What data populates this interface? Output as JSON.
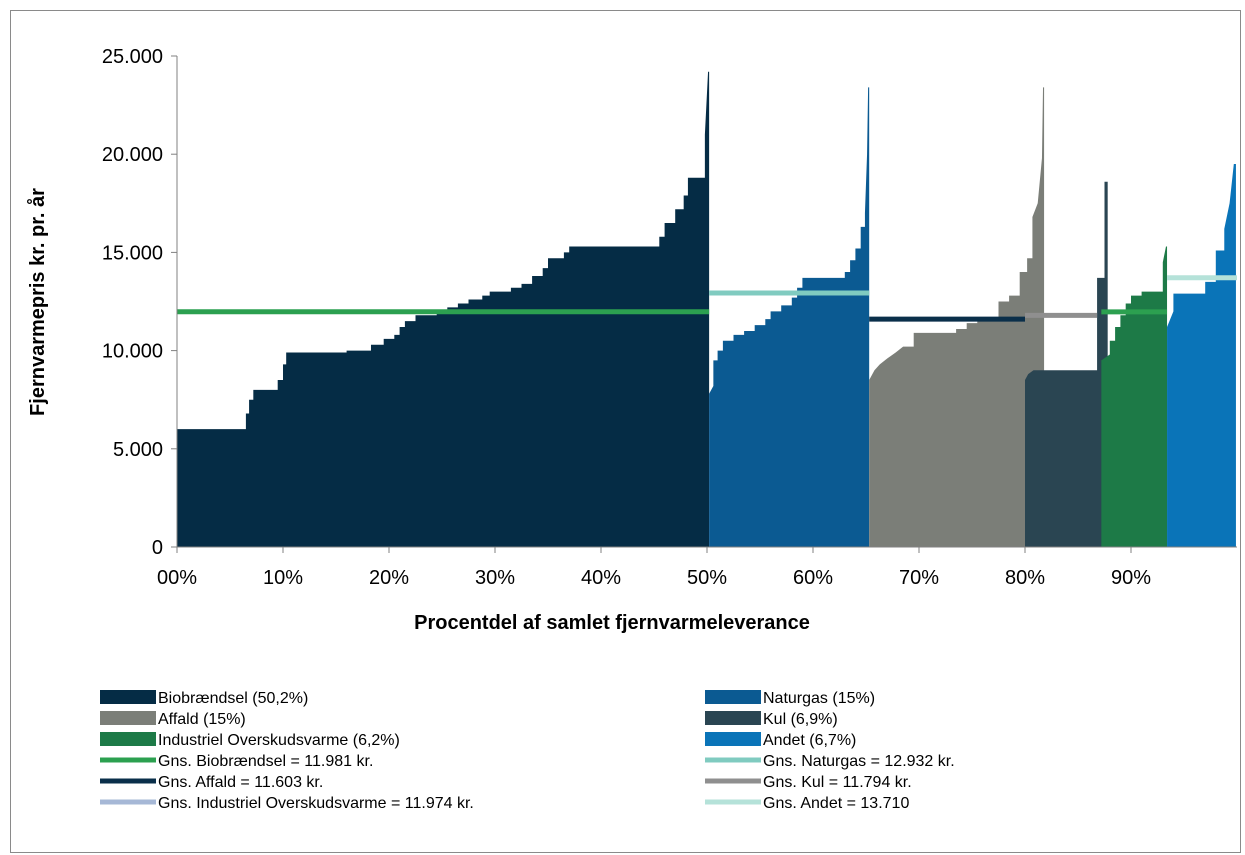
{
  "chart_data": {
    "type": "area",
    "title": "",
    "xlabel": "Procentdel af samlet fjernvarmeleverance",
    "ylabel": "Fjernvarmepris kr. pr. år",
    "xlim": [
      0,
      100
    ],
    "ylim": [
      0,
      25000
    ],
    "x_ticks": [
      0,
      10,
      20,
      30,
      40,
      50,
      60,
      70,
      80,
      90
    ],
    "x_tick_labels": [
      "00%",
      "10%",
      "20%",
      "30%",
      "40%",
      "50%",
      "60%",
      "70%",
      "80%",
      "90%"
    ],
    "y_ticks": [
      0,
      5000,
      10000,
      15000,
      20000,
      25000
    ],
    "y_tick_labels": [
      "0",
      "5.000",
      "10.000",
      "15.000",
      "20.000",
      "25.000"
    ],
    "grid": false,
    "legend_position": "bottom",
    "series": [
      {
        "name": "Biobrændsel (50,2%)",
        "color": "#052c45",
        "points": [
          [
            0,
            6000
          ],
          [
            6.5,
            6000
          ],
          [
            6.5,
            6800
          ],
          [
            6.8,
            6800
          ],
          [
            6.8,
            7500
          ],
          [
            7.2,
            7500
          ],
          [
            7.2,
            8000
          ],
          [
            9.5,
            8000
          ],
          [
            9.5,
            8500
          ],
          [
            10,
            8500
          ],
          [
            10,
            9300
          ],
          [
            10.3,
            9300
          ],
          [
            10.3,
            9900
          ],
          [
            16,
            9900
          ],
          [
            16,
            10000
          ],
          [
            18.3,
            10000
          ],
          [
            18.3,
            10300
          ],
          [
            19.5,
            10300
          ],
          [
            19.5,
            10600
          ],
          [
            20.5,
            10600
          ],
          [
            20.5,
            10800
          ],
          [
            21,
            10800
          ],
          [
            21,
            11200
          ],
          [
            21.5,
            11200
          ],
          [
            21.5,
            11500
          ],
          [
            22.5,
            11500
          ],
          [
            22.5,
            11800
          ],
          [
            24.5,
            11800
          ],
          [
            24.5,
            12000
          ],
          [
            25.5,
            12000
          ],
          [
            25.5,
            12200
          ],
          [
            26.5,
            12200
          ],
          [
            26.5,
            12400
          ],
          [
            27.5,
            12400
          ],
          [
            27.5,
            12600
          ],
          [
            28.8,
            12600
          ],
          [
            28.8,
            12800
          ],
          [
            29.5,
            12800
          ],
          [
            29.5,
            13000
          ],
          [
            31.5,
            13000
          ],
          [
            31.5,
            13200
          ],
          [
            32.5,
            13200
          ],
          [
            32.5,
            13400
          ],
          [
            33.5,
            13400
          ],
          [
            33.5,
            13800
          ],
          [
            34.5,
            13800
          ],
          [
            34.5,
            14200
          ],
          [
            35,
            14200
          ],
          [
            35,
            14700
          ],
          [
            36.5,
            14700
          ],
          [
            36.5,
            15000
          ],
          [
            37,
            15000
          ],
          [
            37,
            15300
          ],
          [
            45.5,
            15300
          ],
          [
            45.5,
            15800
          ],
          [
            46,
            15800
          ],
          [
            46,
            16500
          ],
          [
            47,
            16500
          ],
          [
            47,
            17200
          ],
          [
            47.8,
            17200
          ],
          [
            47.8,
            17900
          ],
          [
            48.2,
            17900
          ],
          [
            48.2,
            18800
          ],
          [
            49.8,
            18800
          ],
          [
            49.8,
            21000
          ],
          [
            50.1,
            24200
          ],
          [
            50.2,
            24200
          ]
        ]
      },
      {
        "name": "Naturgas (15%)",
        "color": "#0b5a92",
        "points": [
          [
            50.2,
            7800
          ],
          [
            50.6,
            8200
          ],
          [
            50.6,
            9500
          ],
          [
            51,
            9500
          ],
          [
            51,
            10000
          ],
          [
            51.5,
            10000
          ],
          [
            51.5,
            10500
          ],
          [
            52.5,
            10500
          ],
          [
            52.5,
            10800
          ],
          [
            53.5,
            10800
          ],
          [
            53.5,
            11000
          ],
          [
            54.5,
            11000
          ],
          [
            54.5,
            11300
          ],
          [
            55.5,
            11300
          ],
          [
            55.5,
            11600
          ],
          [
            56,
            11600
          ],
          [
            56,
            12000
          ],
          [
            57,
            12000
          ],
          [
            57,
            12300
          ],
          [
            58,
            12300
          ],
          [
            58,
            12700
          ],
          [
            58.5,
            12700
          ],
          [
            58.5,
            13200
          ],
          [
            59,
            13200
          ],
          [
            59,
            13700
          ],
          [
            63,
            13700
          ],
          [
            63,
            14000
          ],
          [
            63.5,
            14000
          ],
          [
            63.5,
            14600
          ],
          [
            64,
            14600
          ],
          [
            64,
            15200
          ],
          [
            64.5,
            15200
          ],
          [
            64.5,
            16300
          ],
          [
            64.9,
            16300
          ],
          [
            64.9,
            17000
          ],
          [
            65.1,
            20000
          ],
          [
            65.2,
            23400
          ],
          [
            65.3,
            23400
          ]
        ]
      },
      {
        "name": "Affald (15%)",
        "color": "#7b7e78",
        "points": [
          [
            65.3,
            8500
          ],
          [
            65.8,
            9000
          ],
          [
            66.3,
            9300
          ],
          [
            67,
            9600
          ],
          [
            67.8,
            9900
          ],
          [
            68.5,
            10200
          ],
          [
            69.5,
            10200
          ],
          [
            69.5,
            10900
          ],
          [
            73.5,
            10900
          ],
          [
            73.5,
            11100
          ],
          [
            74.5,
            11100
          ],
          [
            74.5,
            11400
          ],
          [
            75.5,
            11400
          ],
          [
            75.5,
            11600
          ],
          [
            77.5,
            11600
          ],
          [
            77.5,
            12500
          ],
          [
            78.5,
            12500
          ],
          [
            78.5,
            12800
          ],
          [
            79.5,
            12800
          ],
          [
            79.5,
            14000
          ],
          [
            80.2,
            14000
          ],
          [
            80.2,
            14700
          ],
          [
            80.7,
            14700
          ],
          [
            80.7,
            16800
          ],
          [
            81.2,
            17500
          ],
          [
            81.6,
            19800
          ],
          [
            81.7,
            23400
          ],
          [
            81.8,
            23400
          ]
        ]
      },
      {
        "name": "Kul (6,9%)",
        "color": "#2a4552",
        "points": [
          [
            80,
            8500
          ],
          [
            80.3,
            8800
          ],
          [
            80.8,
            9000
          ],
          [
            86.8,
            9000
          ],
          [
            86.8,
            13700
          ],
          [
            87.5,
            13700
          ],
          [
            87.5,
            18600
          ],
          [
            87.8,
            18600
          ]
        ]
      },
      {
        "name": "Industriel Overskudsvarme (6,2%)",
        "color": "#1d7a47",
        "points": [
          [
            87.2,
            9500
          ],
          [
            88,
            9800
          ],
          [
            88,
            10500
          ],
          [
            88.5,
            10500
          ],
          [
            88.5,
            11200
          ],
          [
            89,
            11200
          ],
          [
            89,
            11800
          ],
          [
            89.5,
            11800
          ],
          [
            89.5,
            12400
          ],
          [
            90,
            12400
          ],
          [
            90,
            12800
          ],
          [
            91,
            12800
          ],
          [
            91,
            13000
          ],
          [
            93,
            13000
          ],
          [
            93,
            14500
          ],
          [
            93.3,
            15300
          ],
          [
            93.4,
            15300
          ]
        ]
      },
      {
        "name": "Andet (6,7%)",
        "color": "#0a74b8",
        "points": [
          [
            93.4,
            11200
          ],
          [
            94,
            12000
          ],
          [
            94,
            12900
          ],
          [
            97,
            12900
          ],
          [
            97,
            13500
          ],
          [
            98,
            13500
          ],
          [
            98,
            15100
          ],
          [
            98.8,
            15100
          ],
          [
            98.8,
            16200
          ],
          [
            99.3,
            17500
          ],
          [
            99.7,
            19500
          ],
          [
            99.9,
            19500
          ]
        ]
      }
    ],
    "averages": [
      {
        "name": "Gns. Biobrændsel = 11.981 kr.",
        "color": "#2ca050",
        "value": 11981,
        "x_range": [
          0,
          50.2
        ]
      },
      {
        "name": "Gns. Naturgas = 12.932 kr.",
        "color": "#80cbc0",
        "value": 12932,
        "x_range": [
          50.2,
          65.3
        ]
      },
      {
        "name": "Gns. Affald = 11.603 kr.",
        "color": "#0a2f4a",
        "value": 11603,
        "x_range": [
          65.3,
          80.0
        ]
      },
      {
        "name": "Gns. Kul = 11.794 kr.",
        "color": "#8f8f8f",
        "value": 11794,
        "x_range": [
          80.0,
          86.8
        ]
      },
      {
        "name": "Gns. Industriel Overskudsvarme = 11.974 kr.",
        "color": "#a6b8d6",
        "value": 11974,
        "x_range": [
          87.2,
          93.4
        ],
        "drawn_color": "#2ca050"
      },
      {
        "name": "Gns. Andet = 13.710",
        "color": "#b5e2d9",
        "value": 13710,
        "x_range": [
          93.4,
          100
        ]
      }
    ]
  }
}
